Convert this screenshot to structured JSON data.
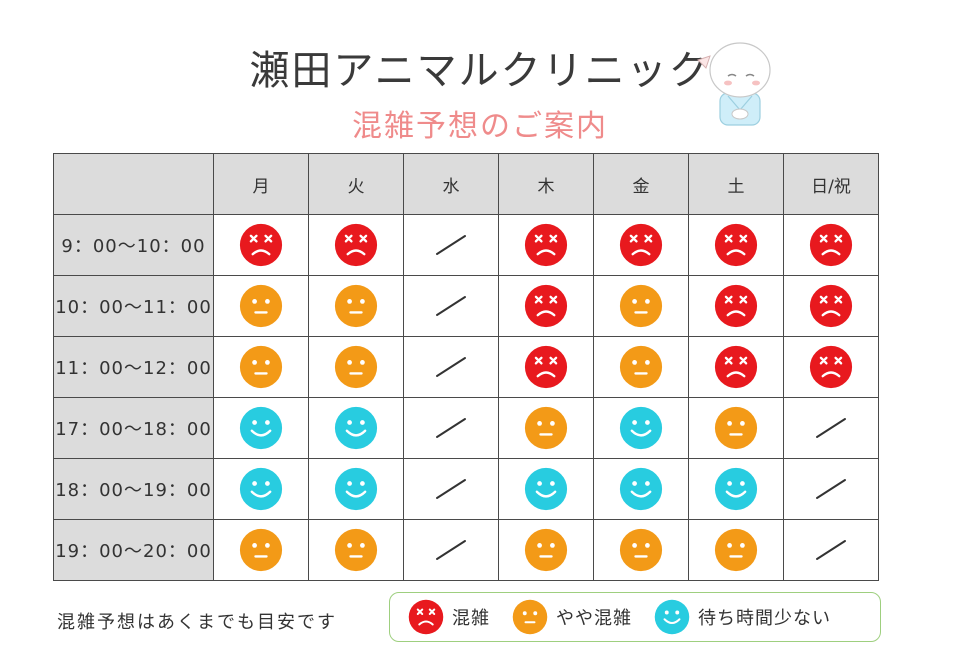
{
  "header": {
    "title": "瀬田アニマルクリニック",
    "subtitle": "混雑予想のご案内"
  },
  "colors": {
    "busy": "#e8191e",
    "moderate": "#f39a17",
    "quiet": "#28cce0",
    "subtitle": "#ef8b8b",
    "legend_border": "#9ecf7f"
  },
  "icons": {
    "busy": "busy-face-icon",
    "moderate": "moderate-face-icon",
    "quiet": "quiet-face-icon",
    "closed": "closed-slash-icon",
    "mascot": "mascot-icon"
  },
  "table": {
    "days": [
      "月",
      "火",
      "水",
      "木",
      "金",
      "土",
      "日/祝"
    ],
    "rows": [
      {
        "time": "9：00〜10：00",
        "status": [
          "busy",
          "busy",
          "closed",
          "busy",
          "busy",
          "busy",
          "busy"
        ]
      },
      {
        "time": "10：00〜11：00",
        "status": [
          "moderate",
          "moderate",
          "closed",
          "busy",
          "moderate",
          "busy",
          "busy"
        ]
      },
      {
        "time": "11：00〜12：00",
        "status": [
          "moderate",
          "moderate",
          "closed",
          "busy",
          "moderate",
          "busy",
          "busy"
        ]
      },
      {
        "time": "17：00〜18：00",
        "status": [
          "quiet",
          "quiet",
          "closed",
          "moderate",
          "quiet",
          "moderate",
          "closed"
        ]
      },
      {
        "time": "18：00〜19：00",
        "status": [
          "quiet",
          "quiet",
          "closed",
          "quiet",
          "quiet",
          "quiet",
          "closed"
        ]
      },
      {
        "time": "19：00〜20：00",
        "status": [
          "moderate",
          "moderate",
          "closed",
          "moderate",
          "moderate",
          "moderate",
          "closed"
        ]
      }
    ]
  },
  "footer": {
    "note": "混雑予想はあくまでも目安です",
    "legend": {
      "busy": "混雑",
      "moderate": "やや混雑",
      "quiet": "待ち時間少ない"
    }
  }
}
